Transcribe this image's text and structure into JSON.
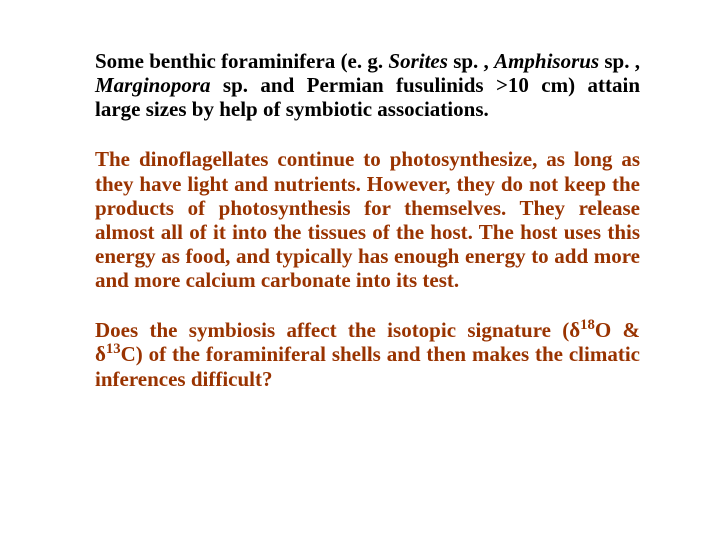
{
  "paragraphs": {
    "p1": {
      "pre": "Some benthic foraminifera (e. g. ",
      "it1": "Sorites ",
      "mid1": "sp. , ",
      "it2": "Amphisorus ",
      "mid2": "sp. , ",
      "it3": "Marginopora ",
      "post": "sp. and Permian fusulinids >10 cm) attain large sizes by help of symbiotic associations."
    },
    "p2": "The dinoflagellates continue to photosynthesize, as long as they have light and nutrients. However, they do not keep the products of photosynthesis for themselves. They release almost all of it into the tissues of the host. The host uses this energy as food, and typically has enough energy to add more and more calcium carbonate into its test.",
    "p3": {
      "a": "Does the symbiosis affect the isotopic signature (δ",
      "sup1": "18",
      "b": "O & δ",
      "sup2": "13",
      "c": "C) of the foraminiferal shells and then makes the climatic inferences difficult?"
    }
  },
  "style": {
    "text_color_main": "#993300",
    "text_color_first": "#000000",
    "background": "#ffffff",
    "font_family": "Times New Roman",
    "font_size_pt": 16,
    "font_weight": "bold",
    "align": "justify"
  }
}
